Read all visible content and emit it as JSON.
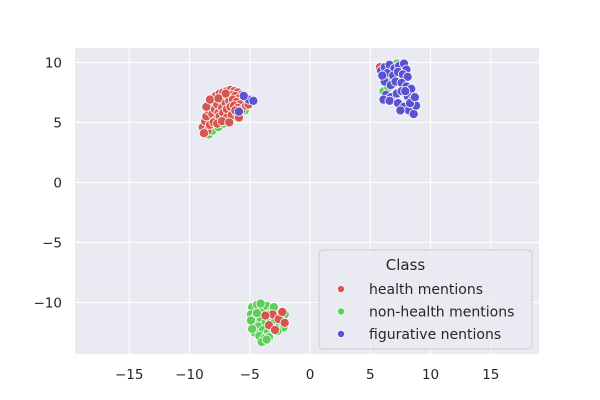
{
  "chart_data": {
    "type": "scatter",
    "title": "",
    "xlabel": "",
    "ylabel": "",
    "xlim": [
      -19.5,
      19
    ],
    "ylim": [
      -14.3,
      11.2
    ],
    "xticks": [
      -15,
      -10,
      -5,
      0,
      5,
      10,
      15
    ],
    "xtick_labels": [
      "−15",
      "−10",
      "−5",
      "0",
      "5",
      "10",
      "15"
    ],
    "yticks": [
      -10,
      -5,
      0,
      5,
      10
    ],
    "ytick_labels": [
      "−10",
      "−5",
      "0",
      "5",
      "10"
    ],
    "grid": true,
    "legend": {
      "title": "Class",
      "position": "lower-right"
    },
    "series": [
      {
        "name": "health mentions",
        "color": "#d5564f",
        "points": [
          [
            -8.9,
            4.6
          ],
          [
            -8.7,
            5.1
          ],
          [
            -8.5,
            4.3
          ],
          [
            -8.8,
            4.1
          ],
          [
            -8.6,
            5.5
          ],
          [
            -8.4,
            6.0
          ],
          [
            -8.2,
            6.4
          ],
          [
            -8.0,
            6.8
          ],
          [
            -7.8,
            7.2
          ],
          [
            -7.5,
            7.4
          ],
          [
            -7.2,
            7.5
          ],
          [
            -6.9,
            7.6
          ],
          [
            -6.6,
            7.7
          ],
          [
            -6.3,
            7.6
          ],
          [
            -6.0,
            7.5
          ],
          [
            -5.7,
            7.3
          ],
          [
            -5.4,
            7.1
          ],
          [
            -5.2,
            6.9
          ],
          [
            -8.1,
            5.7
          ],
          [
            -7.9,
            6.1
          ],
          [
            -7.7,
            6.5
          ],
          [
            -7.4,
            6.9
          ],
          [
            -7.1,
            7.1
          ],
          [
            -6.8,
            7.2
          ],
          [
            -6.5,
            7.3
          ],
          [
            -6.2,
            7.2
          ],
          [
            -5.9,
            7.0
          ],
          [
            -5.6,
            6.8
          ],
          [
            -7.6,
            5.8
          ],
          [
            -7.3,
            6.2
          ],
          [
            -7.0,
            6.6
          ],
          [
            -6.7,
            6.8
          ],
          [
            -6.4,
            6.9
          ],
          [
            -6.1,
            6.7
          ],
          [
            -5.8,
            6.5
          ],
          [
            -7.8,
            5.2
          ],
          [
            -7.5,
            5.5
          ],
          [
            -7.2,
            5.8
          ],
          [
            -6.9,
            6.1
          ],
          [
            -6.6,
            6.3
          ],
          [
            -6.3,
            6.4
          ],
          [
            -6.0,
            6.2
          ],
          [
            -8.3,
            4.8
          ],
          [
            -8.0,
            5.0
          ],
          [
            -7.7,
            4.9
          ],
          [
            -6.9,
            5.4
          ],
          [
            -6.5,
            5.6
          ],
          [
            -6.1,
            5.8
          ],
          [
            -5.7,
            6.0
          ],
          [
            -5.3,
            6.4
          ],
          [
            -8.6,
            6.3
          ],
          [
            -7.3,
            5.1
          ],
          [
            -6.7,
            5.0
          ],
          [
            -5.9,
            5.4
          ],
          [
            -4.9,
            6.8
          ],
          [
            -5.1,
            6.5
          ],
          [
            -7.0,
            7.4
          ],
          [
            -8.3,
            6.9
          ],
          [
            -7.6,
            7.0
          ],
          [
            -6.2,
            6.0
          ],
          [
            -3.1,
            -11.0
          ],
          [
            -2.6,
            -11.4
          ],
          [
            -2.3,
            -10.8
          ],
          [
            -3.4,
            -11.9
          ],
          [
            -2.9,
            -12.3
          ],
          [
            -2.1,
            -11.7
          ],
          [
            -3.7,
            -11.1
          ],
          [
            5.8,
            9.6
          ],
          [
            6.3,
            9.4
          ],
          [
            6.8,
            9.1
          ],
          [
            7.1,
            9.6
          ]
        ]
      },
      {
        "name": "non-health mentions",
        "color": "#5dce5a",
        "points": [
          [
            -8.4,
            4.0
          ],
          [
            -8.1,
            4.3
          ],
          [
            -7.6,
            4.6
          ],
          [
            -7.2,
            4.9
          ],
          [
            -6.8,
            5.2
          ],
          [
            -6.3,
            5.5
          ],
          [
            -5.8,
            5.7
          ],
          [
            -5.4,
            6.0
          ],
          [
            -6.9,
            6.3
          ],
          [
            -7.4,
            5.1
          ],
          [
            -4.8,
            -10.4
          ],
          [
            -4.4,
            -10.2
          ],
          [
            -4.0,
            -10.6
          ],
          [
            -3.6,
            -10.3
          ],
          [
            -3.2,
            -10.7
          ],
          [
            -2.8,
            -10.9
          ],
          [
            -2.4,
            -11.3
          ],
          [
            -2.1,
            -11.0
          ],
          [
            -4.9,
            -11.0
          ],
          [
            -4.5,
            -11.2
          ],
          [
            -4.1,
            -11.5
          ],
          [
            -3.7,
            -11.7
          ],
          [
            -3.3,
            -11.4
          ],
          [
            -2.9,
            -11.6
          ],
          [
            -2.5,
            -11.9
          ],
          [
            -2.2,
            -12.1
          ],
          [
            -4.7,
            -11.8
          ],
          [
            -4.3,
            -12.0
          ],
          [
            -3.9,
            -12.3
          ],
          [
            -3.5,
            -12.5
          ],
          [
            -3.1,
            -12.2
          ],
          [
            -2.7,
            -12.4
          ],
          [
            -4.6,
            -12.5
          ],
          [
            -4.2,
            -12.8
          ],
          [
            -3.8,
            -13.0
          ],
          [
            -3.4,
            -12.9
          ],
          [
            -4.0,
            -13.3
          ],
          [
            -3.6,
            -13.1
          ],
          [
            -4.8,
            -12.2
          ],
          [
            -4.4,
            -10.9
          ],
          [
            -3.0,
            -10.4
          ],
          [
            -2.3,
            -11.6
          ],
          [
            -4.9,
            -11.5
          ],
          [
            -4.1,
            -10.1
          ],
          [
            -3.4,
            -11.0
          ],
          [
            6.1,
            7.6
          ],
          [
            6.5,
            7.9
          ],
          [
            6.9,
            8.2
          ],
          [
            7.2,
            9.9
          ],
          [
            6.6,
            8.6
          ],
          [
            7.4,
            8.7
          ]
        ]
      },
      {
        "name": "figurative nentions",
        "color": "#5a52d3",
        "points": [
          [
            -5.1,
            6.9
          ],
          [
            -4.7,
            6.8
          ],
          [
            -5.5,
            7.2
          ],
          [
            -5.9,
            5.9
          ],
          [
            5.9,
            9.3
          ],
          [
            6.2,
            9.6
          ],
          [
            6.6,
            9.8
          ],
          [
            7.0,
            9.5
          ],
          [
            7.4,
            9.7
          ],
          [
            7.8,
            9.9
          ],
          [
            8.0,
            9.4
          ],
          [
            6.4,
            9.1
          ],
          [
            6.9,
            8.9
          ],
          [
            7.3,
            9.2
          ],
          [
            7.7,
            9.0
          ],
          [
            8.1,
            8.8
          ],
          [
            6.2,
            8.4
          ],
          [
            6.7,
            8.1
          ],
          [
            7.1,
            8.4
          ],
          [
            7.6,
            8.3
          ],
          [
            8.0,
            8.0
          ],
          [
            8.4,
            7.8
          ],
          [
            6.3,
            7.3
          ],
          [
            6.7,
            7.1
          ],
          [
            7.2,
            7.4
          ],
          [
            7.6,
            7.6
          ],
          [
            8.1,
            7.2
          ],
          [
            8.5,
            6.9
          ],
          [
            6.1,
            6.9
          ],
          [
            6.6,
            6.8
          ],
          [
            7.3,
            6.6
          ],
          [
            7.8,
            6.3
          ],
          [
            8.2,
            6.0
          ],
          [
            8.6,
            5.7
          ],
          [
            8.8,
            6.4
          ],
          [
            7.5,
            6.0
          ],
          [
            8.3,
            6.6
          ],
          [
            6.0,
            8.9
          ],
          [
            7.9,
            7.6
          ],
          [
            8.7,
            7.1
          ]
        ]
      }
    ]
  }
}
